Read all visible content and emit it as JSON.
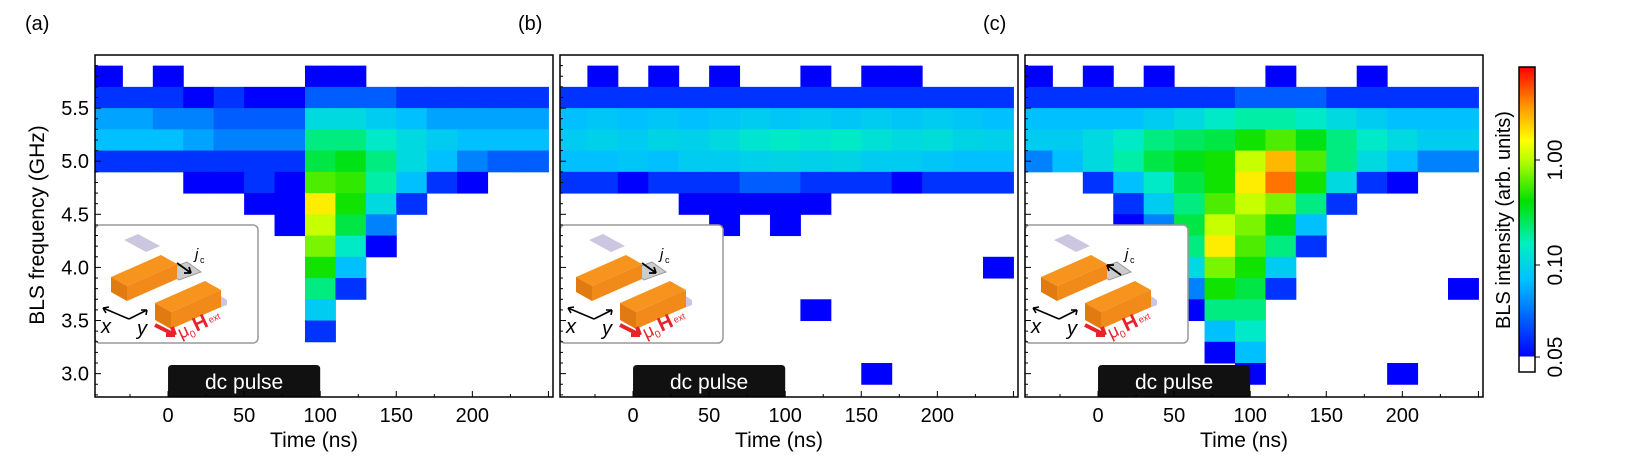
{
  "colors": {
    "axis": "#000000",
    "pulse": "#111111",
    "bar": "#f7941d",
    "bar_dark": "#e07b12",
    "pad": "#cdc6e0",
    "field": "#e8222a"
  },
  "chart_data": {
    "type": "heatmap",
    "x_label": "Time (ns)",
    "y_label": "BLS frequency  (GHz)",
    "x_ticks": [
      "0",
      "50",
      "100",
      "150",
      "200"
    ],
    "y_ticks": [
      "3.0",
      "3.5",
      "4.0",
      "4.5",
      "5.0",
      "5.5"
    ],
    "xlim": [
      -48,
      253
    ],
    "ylim": [
      2.78,
      6.0
    ],
    "colorbar": {
      "label": "BLS intensity (arb. units)",
      "ticks": [
        "0.05",
        "0.10",
        "1.00"
      ],
      "scale": "log",
      "range": [
        0.05,
        3
      ],
      "colormap": "white-blue-cyan-green-yellow-red"
    },
    "pulse": {
      "label": "dc pulse",
      "start": 0,
      "end": 100
    },
    "time_bins": [
      -40,
      -20,
      0,
      20,
      40,
      60,
      80,
      100,
      120,
      140,
      160,
      180,
      200,
      220,
      240
    ],
    "freq_bins": [
      5.8,
      5.6,
      5.4,
      5.2,
      5.0,
      4.8,
      4.6,
      4.4,
      4.2,
      4.0,
      3.8,
      3.6,
      3.4,
      3.2,
      3.0
    ],
    "panels": [
      {
        "label": "(a)",
        "inset": {
          "current": "j",
          "current_sub": "c",
          "x": "x",
          "y": "y",
          "field": "μ",
          "field_sub": "0",
          "field_H": "H",
          "field_ext": "ext",
          "current_dir": "forward"
        },
        "values": [
          [
            0.05,
            0,
            0.05,
            0,
            0,
            0,
            0,
            0.05,
            0.05,
            0,
            0,
            0,
            0,
            0,
            0
          ],
          [
            0.06,
            0.06,
            0.06,
            0.05,
            0.06,
            0.05,
            0.05,
            0.07,
            0.07,
            0.07,
            0.06,
            0.06,
            0.06,
            0.06,
            0.06
          ],
          [
            0.09,
            0.09,
            0.08,
            0.08,
            0.07,
            0.07,
            0.07,
            0.15,
            0.15,
            0.12,
            0.1,
            0.09,
            0.09,
            0.09,
            0.09
          ],
          [
            0.1,
            0.1,
            0.1,
            0.09,
            0.08,
            0.08,
            0.08,
            0.3,
            0.3,
            0.2,
            0.15,
            0.12,
            0.1,
            0.1,
            0.1
          ],
          [
            0.06,
            0.06,
            0.06,
            0.06,
            0.06,
            0.06,
            0.06,
            0.4,
            0.5,
            0.3,
            0.15,
            0.1,
            0.08,
            0.07,
            0.07
          ],
          [
            0,
            0,
            0,
            0.05,
            0.05,
            0.06,
            0.05,
            0.8,
            0.7,
            0.25,
            0.1,
            0.06,
            0.05,
            0,
            0
          ],
          [
            0,
            0,
            0,
            0,
            0,
            0.05,
            0.05,
            1.5,
            0.6,
            0.15,
            0.06,
            0,
            0,
            0,
            0
          ],
          [
            0,
            0,
            0,
            0,
            0,
            0,
            0.05,
            1.2,
            0.4,
            0.08,
            0,
            0,
            0,
            0,
            0
          ],
          [
            0,
            0,
            0,
            0,
            0,
            0,
            0,
            1.0,
            0.2,
            0.05,
            0,
            0,
            0,
            0,
            0
          ],
          [
            0,
            0,
            0,
            0,
            0,
            0,
            0,
            0.6,
            0.1,
            0,
            0,
            0,
            0,
            0,
            0
          ],
          [
            0,
            0,
            0,
            0,
            0,
            0,
            0,
            0.3,
            0.06,
            0,
            0,
            0,
            0,
            0,
            0
          ],
          [
            0,
            0,
            0,
            0,
            0,
            0,
            0,
            0.12,
            0,
            0,
            0,
            0,
            0,
            0,
            0
          ],
          [
            0,
            0,
            0,
            0,
            0,
            0,
            0,
            0.06,
            0,
            0,
            0,
            0,
            0,
            0,
            0
          ],
          [
            0,
            0,
            0,
            0,
            0,
            0,
            0,
            0,
            0,
            0,
            0,
            0,
            0,
            0,
            0
          ],
          [
            0,
            0,
            0,
            0,
            0,
            0,
            0,
            0,
            0,
            0,
            0,
            0,
            0,
            0,
            0
          ]
        ]
      },
      {
        "label": "(b)",
        "inset": {
          "current": "j",
          "current_sub": "c",
          "x": "x",
          "y": "y",
          "field": "μ",
          "field_sub": "0",
          "field_H": "H",
          "field_ext": "ext",
          "current_dir": "forward"
        },
        "values": [
          [
            0,
            0.05,
            0,
            0.05,
            0,
            0.05,
            0,
            0,
            0.05,
            0,
            0.05,
            0.05,
            0,
            0,
            0
          ],
          [
            0.06,
            0.06,
            0.06,
            0.06,
            0.06,
            0.06,
            0.06,
            0.06,
            0.06,
            0.06,
            0.06,
            0.06,
            0.06,
            0.06,
            0.06
          ],
          [
            0.1,
            0.11,
            0.1,
            0.11,
            0.1,
            0.11,
            0.12,
            0.11,
            0.12,
            0.11,
            0.12,
            0.11,
            0.12,
            0.11,
            0.1
          ],
          [
            0.12,
            0.13,
            0.12,
            0.14,
            0.13,
            0.15,
            0.18,
            0.2,
            0.18,
            0.2,
            0.17,
            0.15,
            0.16,
            0.14,
            0.13
          ],
          [
            0.1,
            0.1,
            0.11,
            0.1,
            0.12,
            0.12,
            0.13,
            0.14,
            0.13,
            0.14,
            0.12,
            0.12,
            0.11,
            0.1,
            0.1
          ],
          [
            0.06,
            0.06,
            0.05,
            0.06,
            0.06,
            0.06,
            0.07,
            0.07,
            0.06,
            0.06,
            0.06,
            0.05,
            0.06,
            0.06,
            0.06
          ],
          [
            0,
            0,
            0,
            0,
            0.05,
            0.05,
            0.05,
            0.05,
            0.05,
            0,
            0,
            0,
            0,
            0,
            0
          ],
          [
            0,
            0,
            0,
            0,
            0,
            0.05,
            0,
            0.05,
            0,
            0,
            0,
            0,
            0,
            0,
            0
          ],
          [
            0,
            0,
            0,
            0,
            0,
            0,
            0,
            0,
            0,
            0,
            0,
            0,
            0,
            0,
            0
          ],
          [
            0,
            0,
            0,
            0,
            0,
            0,
            0,
            0,
            0,
            0,
            0,
            0,
            0,
            0,
            0.05
          ],
          [
            0,
            0,
            0,
            0,
            0.05,
            0,
            0,
            0,
            0,
            0,
            0,
            0,
            0,
            0,
            0
          ],
          [
            0,
            0,
            0,
            0,
            0,
            0,
            0,
            0,
            0.05,
            0,
            0,
            0,
            0,
            0,
            0
          ],
          [
            0,
            0,
            0,
            0,
            0,
            0,
            0,
            0,
            0,
            0,
            0,
            0,
            0,
            0,
            0
          ],
          [
            0,
            0,
            0,
            0,
            0,
            0,
            0,
            0,
            0,
            0,
            0,
            0,
            0,
            0,
            0
          ],
          [
            0,
            0,
            0,
            0,
            0,
            0,
            0,
            0,
            0,
            0,
            0.05,
            0,
            0,
            0,
            0
          ]
        ]
      },
      {
        "label": "(c)",
        "inset": {
          "current": "j",
          "current_sub": "c",
          "x": "x",
          "y": "y",
          "field": "μ",
          "field_sub": "0",
          "field_H": "H",
          "field_ext": "ext",
          "current_dir": "reverse"
        },
        "values": [
          [
            0.05,
            0,
            0.05,
            0,
            0.05,
            0,
            0,
            0,
            0.05,
            0,
            0,
            0.05,
            0,
            0,
            0
          ],
          [
            0.06,
            0.06,
            0.06,
            0.06,
            0.06,
            0.06,
            0.06,
            0.07,
            0.07,
            0.07,
            0.06,
            0.06,
            0.06,
            0.06,
            0.06
          ],
          [
            0.1,
            0.1,
            0.1,
            0.1,
            0.12,
            0.15,
            0.2,
            0.25,
            0.25,
            0.2,
            0.15,
            0.12,
            0.1,
            0.1,
            0.1
          ],
          [
            0.12,
            0.12,
            0.15,
            0.2,
            0.3,
            0.35,
            0.4,
            0.6,
            0.8,
            0.5,
            0.3,
            0.2,
            0.15,
            0.12,
            0.12
          ],
          [
            0.08,
            0.1,
            0.15,
            0.25,
            0.4,
            0.5,
            0.6,
            1.2,
            1.8,
            0.8,
            0.3,
            0.15,
            0.1,
            0.08,
            0.08
          ],
          [
            0,
            0,
            0.06,
            0.1,
            0.2,
            0.4,
            0.6,
            1.5,
            2.2,
            0.6,
            0.15,
            0.06,
            0.05,
            0,
            0
          ],
          [
            0,
            0,
            0,
            0.06,
            0.12,
            0.3,
            0.8,
            1.2,
            1.0,
            0.3,
            0.06,
            0,
            0,
            0,
            0
          ],
          [
            0,
            0,
            0,
            0.05,
            0.08,
            0.4,
            1.2,
            1.0,
            0.5,
            0.1,
            0,
            0,
            0,
            0,
            0
          ],
          [
            0,
            0,
            0,
            0,
            0.06,
            0.3,
            1.5,
            0.8,
            0.3,
            0.06,
            0,
            0,
            0,
            0,
            0
          ],
          [
            0,
            0,
            0,
            0,
            0.05,
            0.15,
            1.0,
            0.6,
            0.12,
            0,
            0,
            0,
            0,
            0,
            0
          ],
          [
            0,
            0,
            0,
            0,
            0,
            0.08,
            0.6,
            0.4,
            0.06,
            0,
            0,
            0,
            0,
            0,
            0.05
          ],
          [
            0,
            0,
            0,
            0,
            0,
            0.05,
            0.3,
            0.3,
            0,
            0,
            0,
            0,
            0,
            0,
            0
          ],
          [
            0,
            0,
            0,
            0,
            0,
            0,
            0.1,
            0.2,
            0,
            0,
            0,
            0,
            0,
            0,
            0
          ],
          [
            0,
            0,
            0,
            0,
            0,
            0,
            0.05,
            0.1,
            0,
            0,
            0,
            0,
            0,
            0,
            0
          ],
          [
            0,
            0,
            0,
            0,
            0,
            0,
            0,
            0.05,
            0,
            0,
            0,
            0,
            0.05,
            0,
            0
          ]
        ]
      }
    ]
  }
}
